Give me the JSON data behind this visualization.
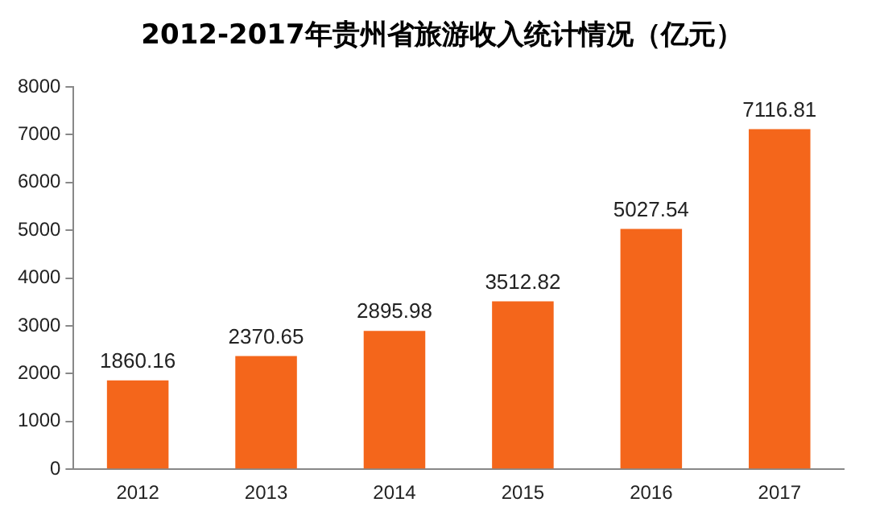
{
  "chart_data": {
    "type": "bar",
    "title": "2012-2017年贵州省旅游收入统计情况（亿元）",
    "categories": [
      "2012",
      "2013",
      "2014",
      "2015",
      "2016",
      "2017"
    ],
    "values": [
      1860.16,
      2370.65,
      2895.98,
      3512.82,
      5027.54,
      7116.81
    ],
    "color": "#f4661b",
    "ylim": [
      0,
      8000
    ],
    "yticks": [
      0,
      1000,
      2000,
      3000,
      4000,
      5000,
      6000,
      7000,
      8000
    ],
    "grid": false,
    "legend": false,
    "data_labels": true
  }
}
